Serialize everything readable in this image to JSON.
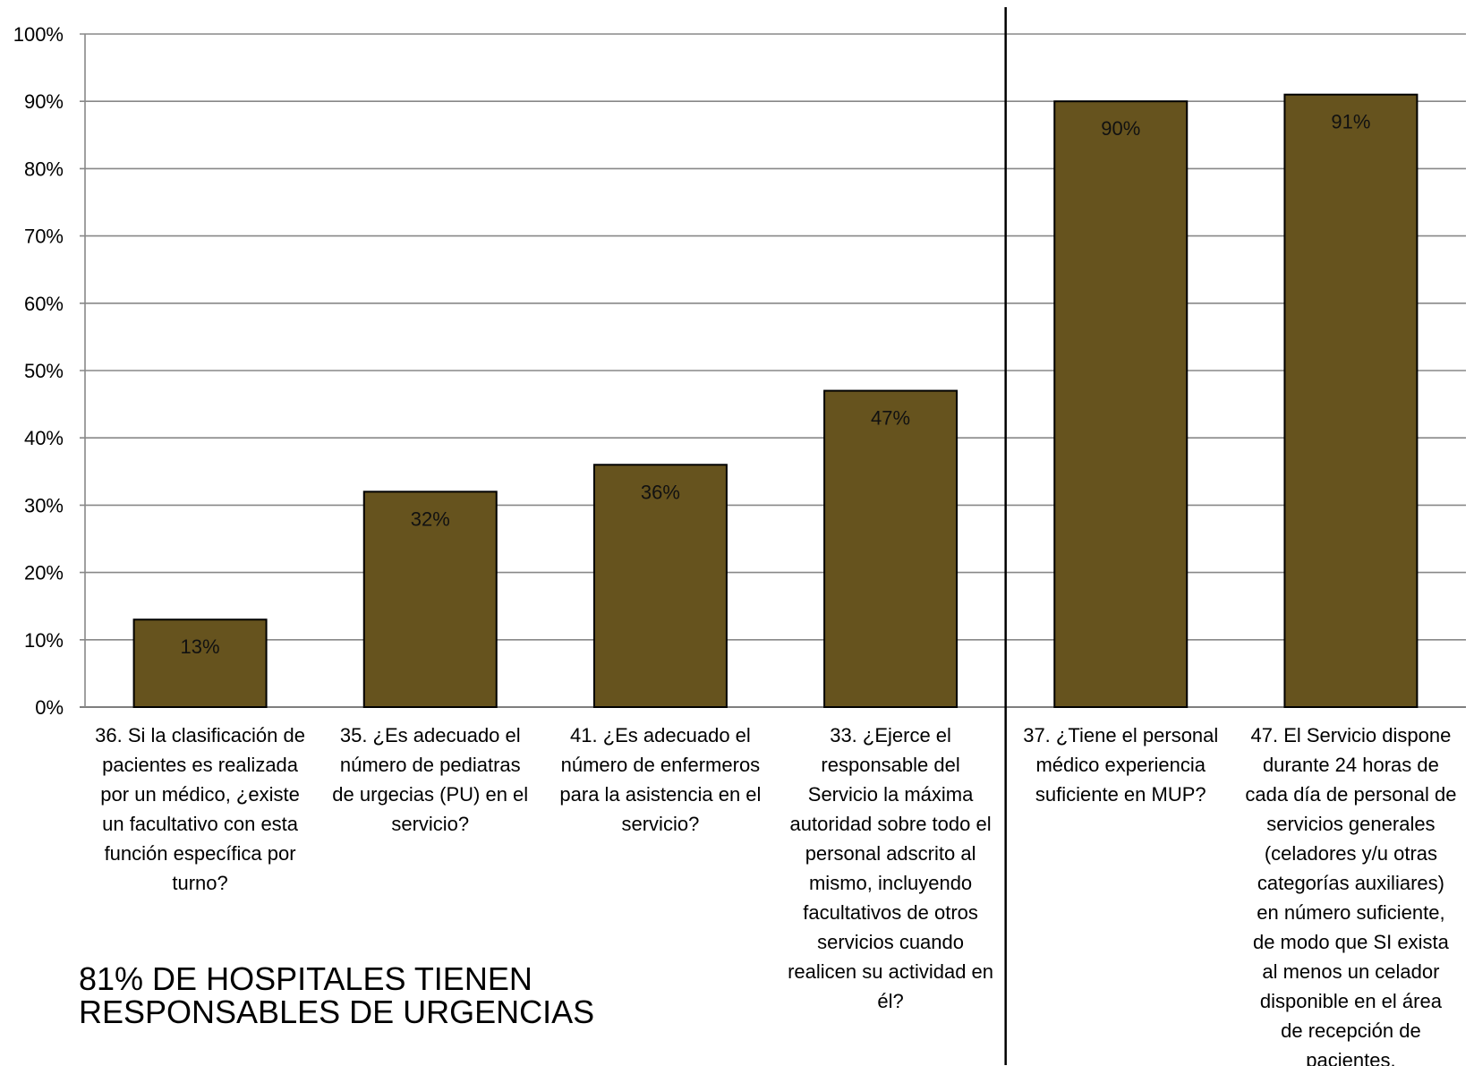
{
  "chart_data": {
    "type": "bar",
    "title": "",
    "xlabel": "",
    "ylabel": "",
    "ylim": [
      0,
      100
    ],
    "y_ticks": [
      "0%",
      "10%",
      "20%",
      "30%",
      "40%",
      "50%",
      "60%",
      "70%",
      "80%",
      "90%",
      "100%"
    ],
    "grid": true,
    "legend": "none",
    "categories": [
      [
        "36. Si la clasificación de",
        "pacientes es realizada",
        "por un médico, ¿existe",
        "un facultativo con esta",
        "función específica por",
        "turno?"
      ],
      [
        "35. ¿Es adecuado el",
        "número de pediatras",
        "de urgecias (PU) en el",
        "servicio?"
      ],
      [
        "41. ¿Es adecuado el",
        "número de enfermeros",
        "para la asistencia en el",
        "servicio?"
      ],
      [
        "33. ¿Ejerce el",
        "responsable del",
        "Servicio la máxima",
        "autoridad sobre todo el",
        "personal adscrito al",
        "mismo, incluyendo",
        "facultativos de otros",
        "servicios cuando",
        "realicen su actividad en",
        "él?"
      ],
      [
        "37. ¿Tiene el personal",
        "médico experiencia",
        "suficiente en MUP?"
      ],
      [
        "47. El Servicio dispone",
        "durante 24 horas de",
        "cada día de personal de",
        "servicios generales",
        "(celadores y/u otras",
        "categorías auxiliares)",
        "en número suficiente,",
        "de modo que SI exista",
        "al menos un celador",
        "disponible en el área",
        "de recepción de",
        "pacientes."
      ]
    ],
    "values": [
      13,
      32,
      36,
      47,
      90,
      91
    ],
    "data_labels": [
      "13%",
      "32%",
      "36%",
      "47%",
      "90%",
      "91%"
    ],
    "annotation": [
      "81% DE HOSPITALES TIENEN",
      "RESPONSABLES DE URGENCIAS"
    ],
    "colors": {
      "bar": "#66531e",
      "bar_border": "#000000",
      "grid": "#888888",
      "divider": "#000000"
    }
  }
}
